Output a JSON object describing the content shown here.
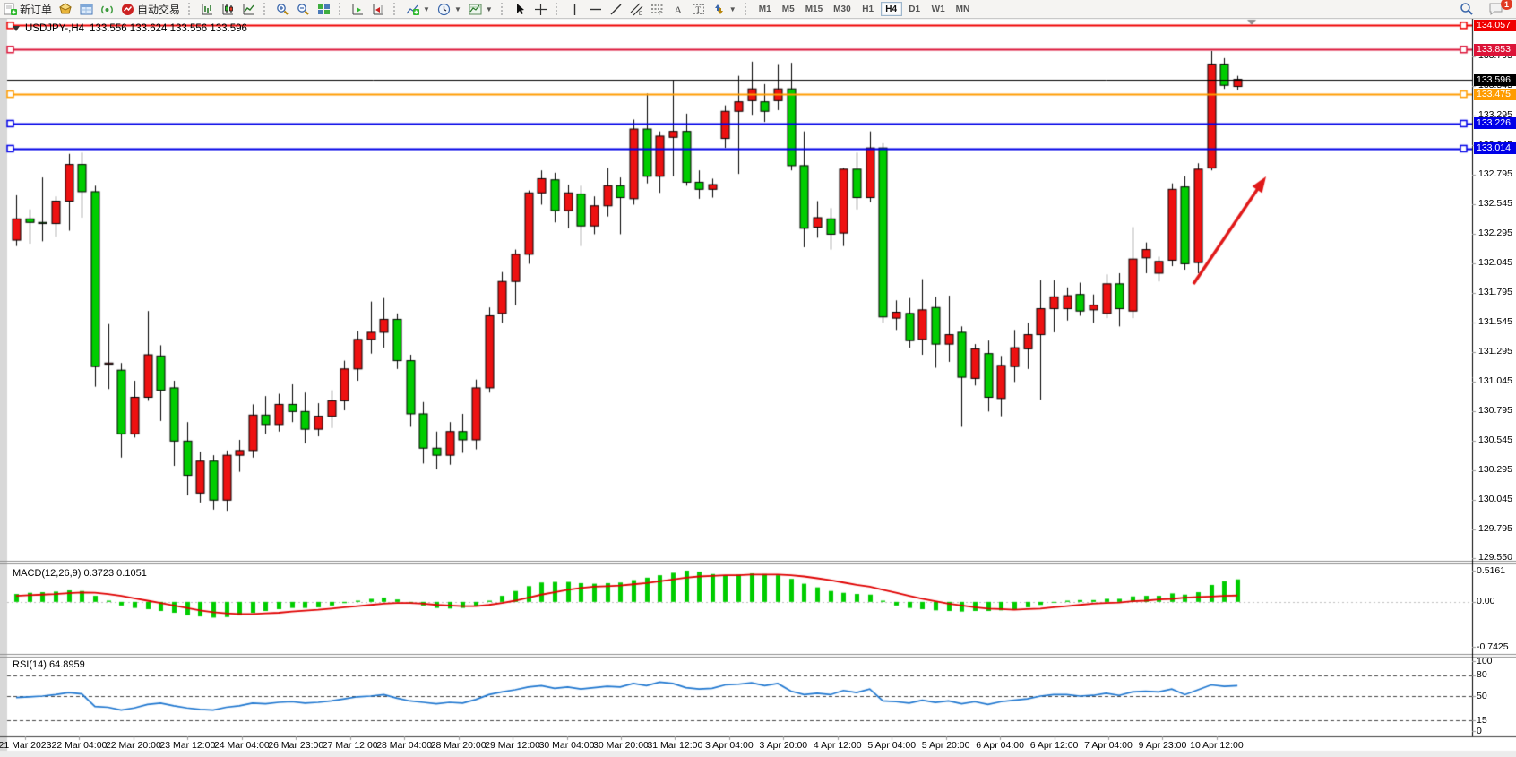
{
  "toolbar": {
    "new_order_label": "新订单",
    "auto_trading_label": "自动交易",
    "timeframes": [
      "M1",
      "M5",
      "M15",
      "M30",
      "H1",
      "H4",
      "D1",
      "W1",
      "MN"
    ],
    "active_timeframe": "H4",
    "notification_count": "1"
  },
  "chart": {
    "title": "USDJPY-,H4",
    "ohlc_text": "133.556 133.624 133.556 133.596",
    "up_color": "#ee1111",
    "down_color": "#00cd00",
    "axis_min": 129.538,
    "axis_max": 134.105,
    "hlines": [
      {
        "text": "134.057",
        "value": 134.057,
        "color": "#f00000",
        "width": 2
      },
      {
        "text": "133.853",
        "value": 133.853,
        "color": "#dc1438",
        "width": 2
      },
      {
        "text": "133.596",
        "value": 133.596,
        "color": "#000000",
        "width": 1,
        "current": true
      },
      {
        "text": "133.475",
        "value": 133.475,
        "color": "#ff9c00",
        "width": 2
      },
      {
        "text": "133.226",
        "value": 133.226,
        "color": "#0000e8",
        "width": 2
      },
      {
        "text": "133.014",
        "value": 133.014,
        "color": "#0000e8",
        "width": 2
      }
    ],
    "y_axis": {
      "ticks": [
        "133.795",
        "133.545",
        "133.295",
        "133.045",
        "132.795",
        "132.545",
        "132.295",
        "132.045",
        "131.795",
        "131.545",
        "131.295",
        "131.045",
        "130.795",
        "130.545",
        "130.295",
        "130.045",
        "129.795",
        "129.550"
      ]
    },
    "x_labels": [
      "21 Mar 2023",
      "22 Mar 04:00",
      "22 Mar 20:00",
      "23 Mar 12:00",
      "24 Mar 04:00",
      "26 Mar 23:00",
      "27 Mar 12:00",
      "28 Mar 04:00",
      "28 Mar 20:00",
      "29 Mar 12:00",
      "30 Mar 04:00",
      "30 Mar 20:00",
      "31 Mar 12:00",
      "3 Apr 04:00",
      "3 Apr 20:00",
      "4 Apr 12:00",
      "5 Apr 04:00",
      "5 Apr 20:00",
      "6 Apr 04:00",
      "6 Apr 12:00",
      "7 Apr 04:00",
      "9 Apr 23:00",
      "10 Apr 12:00"
    ],
    "candles": [
      [
        132.24,
        132.62,
        132.19,
        132.42
      ],
      [
        132.42,
        132.5,
        132.21,
        132.39
      ],
      [
        132.39,
        132.77,
        132.23,
        132.38
      ],
      [
        132.38,
        132.61,
        132.27,
        132.57
      ],
      [
        132.57,
        132.97,
        132.32,
        132.88
      ],
      [
        132.88,
        132.98,
        132.43,
        132.65
      ],
      [
        132.65,
        132.7,
        131.0,
        131.17
      ],
      [
        131.19,
        131.53,
        130.98,
        131.2
      ],
      [
        131.14,
        131.2,
        130.4,
        130.6
      ],
      [
        130.6,
        131.05,
        130.57,
        130.91
      ],
      [
        130.91,
        131.64,
        130.88,
        131.27
      ],
      [
        131.26,
        131.35,
        130.71,
        130.97
      ],
      [
        130.99,
        131.05,
        130.33,
        130.54
      ],
      [
        130.54,
        130.7,
        130.08,
        130.25
      ],
      [
        130.1,
        130.45,
        130.02,
        130.37
      ],
      [
        130.37,
        130.42,
        129.96,
        130.04
      ],
      [
        130.04,
        130.46,
        129.95,
        130.42
      ],
      [
        130.42,
        130.55,
        130.28,
        130.46
      ],
      [
        130.46,
        130.85,
        130.4,
        130.76
      ],
      [
        130.76,
        130.92,
        130.6,
        130.68
      ],
      [
        130.68,
        130.94,
        130.62,
        130.85
      ],
      [
        130.85,
        131.02,
        130.7,
        130.79
      ],
      [
        130.79,
        130.95,
        130.52,
        130.64
      ],
      [
        130.64,
        130.86,
        130.58,
        130.75
      ],
      [
        130.75,
        130.97,
        130.65,
        130.88
      ],
      [
        130.88,
        131.22,
        130.8,
        131.15
      ],
      [
        131.15,
        131.47,
        131.05,
        131.4
      ],
      [
        131.4,
        131.72,
        131.28,
        131.46
      ],
      [
        131.46,
        131.75,
        131.33,
        131.57
      ],
      [
        131.57,
        131.62,
        131.15,
        131.22
      ],
      [
        131.22,
        131.27,
        130.66,
        130.77
      ],
      [
        130.77,
        130.87,
        130.35,
        130.48
      ],
      [
        130.48,
        130.62,
        130.3,
        130.42
      ],
      [
        130.42,
        130.7,
        130.34,
        130.62
      ],
      [
        130.62,
        130.77,
        130.44,
        130.55
      ],
      [
        130.55,
        131.06,
        130.47,
        130.99
      ],
      [
        130.99,
        131.67,
        130.95,
        131.6
      ],
      [
        131.62,
        131.97,
        131.54,
        131.89
      ],
      [
        131.89,
        132.16,
        131.69,
        132.12
      ],
      [
        132.12,
        132.66,
        132.04,
        132.64
      ],
      [
        132.64,
        132.83,
        132.54,
        132.76
      ],
      [
        132.75,
        132.81,
        132.39,
        132.49
      ],
      [
        132.49,
        132.71,
        132.34,
        132.64
      ],
      [
        132.63,
        132.7,
        132.19,
        132.36
      ],
      [
        132.36,
        132.61,
        132.29,
        132.53
      ],
      [
        132.53,
        132.85,
        132.44,
        132.7
      ],
      [
        132.7,
        132.77,
        132.29,
        132.6
      ],
      [
        132.59,
        133.26,
        132.54,
        133.18
      ],
      [
        133.18,
        133.48,
        132.72,
        132.78
      ],
      [
        132.78,
        133.16,
        132.64,
        133.12
      ],
      [
        133.11,
        133.59,
        132.78,
        133.16
      ],
      [
        133.16,
        133.31,
        132.7,
        132.73
      ],
      [
        132.73,
        132.83,
        132.59,
        132.67
      ],
      [
        132.67,
        132.76,
        132.6,
        132.71
      ],
      [
        133.1,
        133.38,
        133.02,
        133.33
      ],
      [
        133.33,
        133.63,
        132.8,
        133.41
      ],
      [
        133.42,
        133.75,
        133.3,
        133.52
      ],
      [
        133.41,
        133.56,
        133.24,
        133.33
      ],
      [
        133.42,
        133.73,
        133.34,
        133.52
      ],
      [
        133.52,
        133.74,
        132.83,
        132.87
      ],
      [
        132.87,
        133.16,
        132.18,
        132.34
      ],
      [
        132.35,
        132.57,
        132.26,
        132.43
      ],
      [
        132.42,
        132.51,
        132.16,
        132.29
      ],
      [
        132.3,
        132.85,
        132.19,
        132.84
      ],
      [
        132.84,
        132.98,
        132.5,
        132.6
      ],
      [
        132.6,
        133.16,
        132.56,
        133.02
      ],
      [
        133.02,
        133.06,
        131.54,
        131.59
      ],
      [
        131.58,
        131.73,
        131.48,
        131.63
      ],
      [
        131.62,
        131.75,
        131.33,
        131.39
      ],
      [
        131.4,
        131.91,
        131.27,
        131.65
      ],
      [
        131.67,
        131.76,
        131.16,
        131.36
      ],
      [
        131.36,
        131.77,
        131.21,
        131.44
      ],
      [
        131.46,
        131.51,
        130.66,
        131.08
      ],
      [
        131.07,
        131.36,
        131.01,
        131.32
      ],
      [
        131.28,
        131.39,
        130.79,
        130.91
      ],
      [
        130.9,
        131.26,
        130.75,
        131.18
      ],
      [
        131.17,
        131.48,
        131.04,
        131.33
      ],
      [
        131.32,
        131.54,
        131.15,
        131.44
      ],
      [
        131.44,
        131.9,
        130.89,
        131.66
      ],
      [
        131.66,
        131.9,
        131.46,
        131.76
      ],
      [
        131.66,
        131.84,
        131.56,
        131.77
      ],
      [
        131.78,
        131.88,
        131.6,
        131.64
      ],
      [
        131.65,
        131.78,
        131.54,
        131.69
      ],
      [
        131.62,
        131.95,
        131.58,
        131.87
      ],
      [
        131.87,
        131.96,
        131.51,
        131.66
      ],
      [
        131.64,
        132.35,
        131.58,
        132.08
      ],
      [
        132.09,
        132.22,
        131.96,
        132.16
      ],
      [
        131.96,
        132.1,
        131.89,
        132.06
      ],
      [
        132.07,
        132.72,
        132.02,
        132.67
      ],
      [
        132.69,
        132.78,
        131.99,
        132.04
      ],
      [
        132.05,
        132.89,
        131.96,
        132.84
      ],
      [
        132.85,
        133.84,
        132.83,
        133.73
      ],
      [
        133.73,
        133.78,
        133.52,
        133.55
      ],
      [
        133.54,
        133.63,
        133.51,
        133.6
      ]
    ]
  },
  "macd": {
    "label": "MACD(12,26,9)",
    "values_text": "0.3723 0.1051",
    "axis": [
      {
        "text": "0.5161",
        "v": 0.5161
      },
      {
        "text": "0.00",
        "v": 0
      },
      {
        "text": "-0.7425",
        "v": -0.7425
      }
    ],
    "max": 0.5161,
    "min": -0.7425,
    "hist_color": "#00cd00",
    "signal_color": "#e00000",
    "histogram": [
      0.13,
      0.15,
      0.16,
      0.17,
      0.19,
      0.18,
      0.1,
      0.02,
      -0.06,
      -0.1,
      -0.12,
      -0.15,
      -0.18,
      -0.22,
      -0.24,
      -0.26,
      -0.25,
      -0.22,
      -0.18,
      -0.15,
      -0.12,
      -0.1,
      -0.1,
      -0.09,
      -0.06,
      -0.02,
      0.02,
      0.05,
      0.07,
      0.04,
      -0.01,
      -0.06,
      -0.1,
      -0.11,
      -0.1,
      -0.06,
      0.02,
      0.1,
      0.18,
      0.26,
      0.32,
      0.33,
      0.33,
      0.31,
      0.3,
      0.31,
      0.32,
      0.36,
      0.4,
      0.44,
      0.48,
      0.5161,
      0.5,
      0.46,
      0.44,
      0.45,
      0.47,
      0.46,
      0.44,
      0.38,
      0.3,
      0.24,
      0.18,
      0.15,
      0.13,
      0.12,
      0.02,
      -0.06,
      -0.1,
      -0.12,
      -0.14,
      -0.15,
      -0.16,
      -0.15,
      -0.15,
      -0.14,
      -0.12,
      -0.09,
      -0.05,
      -0.01,
      0.02,
      0.03,
      0.03,
      0.05,
      0.05,
      0.09,
      0.1,
      0.1,
      0.14,
      0.12,
      0.16,
      0.28,
      0.34,
      0.3723
    ],
    "signal": [
      0.1,
      0.11,
      0.12,
      0.13,
      0.145,
      0.155,
      0.15,
      0.13,
      0.1,
      0.06,
      0.02,
      -0.02,
      -0.06,
      -0.1,
      -0.14,
      -0.17,
      -0.19,
      -0.2,
      -0.2,
      -0.19,
      -0.18,
      -0.16,
      -0.145,
      -0.13,
      -0.11,
      -0.09,
      -0.07,
      -0.05,
      -0.03,
      -0.02,
      -0.02,
      -0.03,
      -0.05,
      -0.06,
      -0.07,
      -0.07,
      -0.05,
      -0.02,
      0.02,
      0.07,
      0.12,
      0.16,
      0.2,
      0.23,
      0.25,
      0.26,
      0.27,
      0.29,
      0.31,
      0.34,
      0.37,
      0.4,
      0.42,
      0.43,
      0.44,
      0.44,
      0.45,
      0.45,
      0.45,
      0.44,
      0.42,
      0.39,
      0.36,
      0.32,
      0.28,
      0.25,
      0.2,
      0.15,
      0.1,
      0.05,
      0.01,
      -0.03,
      -0.06,
      -0.09,
      -0.11,
      -0.12,
      -0.13,
      -0.12,
      -0.11,
      -0.09,
      -0.07,
      -0.05,
      -0.03,
      -0.02,
      -0.01,
      0.01,
      0.02,
      0.04,
      0.05,
      0.07,
      0.08,
      0.09,
      0.1,
      0.1051
    ]
  },
  "rsi": {
    "label": "RSI(14)",
    "value_text": "64.8959",
    "line_color": "#1f77d0",
    "levels": [
      80,
      50,
      15
    ],
    "axis": [
      {
        "text": "100",
        "v": 100
      },
      {
        "text": "80",
        "v": 80
      },
      {
        "text": "50",
        "v": 50
      },
      {
        "text": "15",
        "v": 15
      },
      {
        "text": "0",
        "v": 0
      }
    ],
    "values": [
      48,
      49,
      50,
      52,
      55,
      53,
      35,
      34,
      30,
      33,
      38,
      40,
      36,
      33,
      31,
      30,
      34,
      36,
      40,
      39,
      41,
      42,
      40,
      41,
      43,
      46,
      49,
      50,
      52,
      47,
      43,
      41,
      39,
      41,
      40,
      45,
      52,
      56,
      59,
      63,
      65,
      61,
      63,
      60,
      62,
      64,
      63,
      68,
      65,
      70,
      68,
      62,
      60,
      61,
      66,
      67,
      69,
      65,
      68,
      57,
      52,
      54,
      52,
      58,
      55,
      60,
      43,
      42,
      40,
      44,
      41,
      43,
      39,
      42,
      38,
      42,
      44,
      46,
      50,
      52,
      52,
      50,
      51,
      54,
      51,
      56,
      57,
      56,
      60,
      52,
      59,
      66,
      64,
      64.9
    ]
  },
  "annotation_arrow": {
    "color": "#e01818",
    "from": [
      1332,
      317
    ],
    "to": [
      1413,
      197
    ]
  }
}
